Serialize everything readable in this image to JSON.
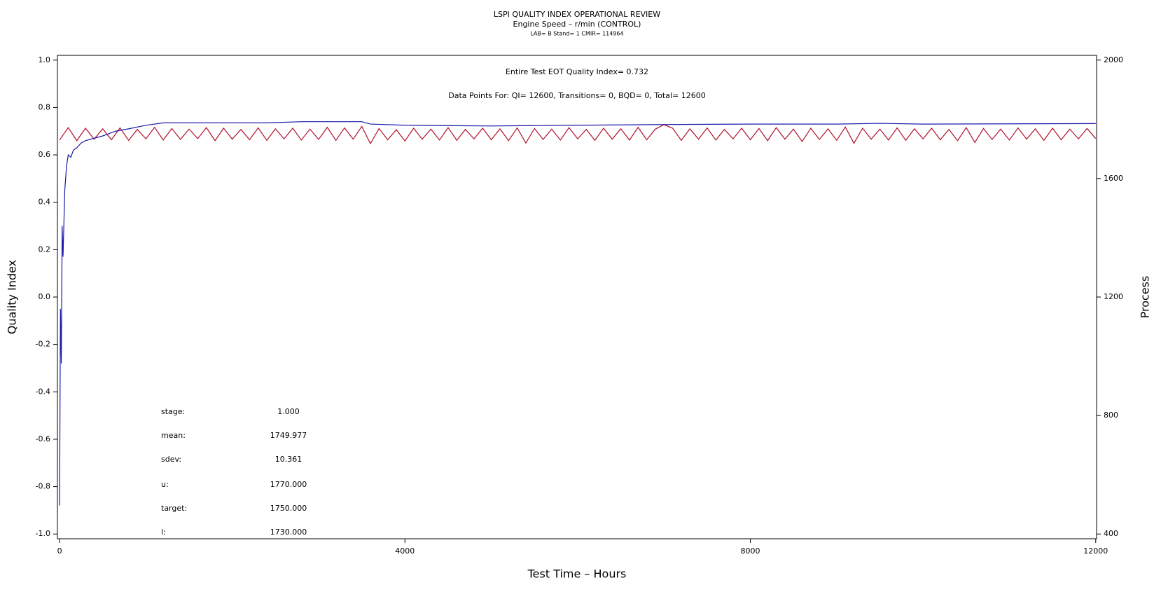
{
  "chart_data": {
    "type": "line",
    "title": "LSPI QUALITY INDEX OPERATIONAL REVIEW",
    "subtitle": "Engine Speed – r/min (CONTROL)",
    "subtitle2": "LAB= B Stand= 1 CMIR= 114964",
    "annotations": [
      "Entire Test EOT Quality Index=   0.732",
      "Data Points For: QI= 12600, Transitions=     0, BQD=     0, Total= 12600"
    ],
    "stats": [
      {
        "label": "stage:",
        "value": "1.000"
      },
      {
        "label": "mean:",
        "value": "1749.977"
      },
      {
        "label": "sdev:",
        "value": "10.361"
      },
      {
        "label": "u:",
        "value": "1770.000"
      },
      {
        "label": "target:",
        "value": "1750.000"
      },
      {
        "label": "l:",
        "value": "1730.000"
      }
    ],
    "x_label": "Test Time – Hours",
    "y_label": "Quality Index",
    "y2_label": "Process",
    "xlim": [
      -25,
      12010
    ],
    "xticks": [
      0,
      4000,
      8000,
      12000
    ],
    "ylim": [
      -1.02,
      1.02
    ],
    "yticks": [
      {
        "value": 1,
        "label": "1.0"
      },
      0.8,
      0.6,
      0.4,
      0.2,
      {
        "value": 0,
        "label": "0.0"
      },
      -0.2,
      -0.4,
      -0.6,
      -0.8,
      {
        "value": -1,
        "label": "-1.0"
      }
    ],
    "y2lim": [
      384,
      2016
    ],
    "y2ticks": [
      400,
      800,
      1200,
      1600,
      2000
    ],
    "series": [
      {
        "name": "Process",
        "color": "#b0102a",
        "axis": "y2",
        "x": [
          0,
          100,
          200,
          300,
          400,
          500,
          600,
          700,
          800,
          900,
          1000,
          1100,
          1200,
          1300,
          1400,
          1500,
          1600,
          1700,
          1800,
          1900,
          2000,
          2100,
          2200,
          2300,
          2400,
          2500,
          2600,
          2700,
          2800,
          2900,
          3000,
          3100,
          3200,
          3300,
          3400,
          3500,
          3600,
          3700,
          3800,
          3900,
          4000,
          4100,
          4200,
          4300,
          4400,
          4500,
          4600,
          4700,
          4800,
          4900,
          5000,
          5100,
          5200,
          5300,
          5400,
          5500,
          5600,
          5700,
          5800,
          5900,
          6000,
          6100,
          6200,
          6300,
          6400,
          6500,
          6600,
          6700,
          6800,
          6900,
          7000,
          7100,
          7200,
          7300,
          7400,
          7500,
          7600,
          7700,
          7800,
          7900,
          8000,
          8100,
          8200,
          8300,
          8400,
          8500,
          8600,
          8700,
          8800,
          8900,
          9000,
          9100,
          9200,
          9300,
          9400,
          9500,
          9600,
          9700,
          9800,
          9900,
          10000,
          10100,
          10200,
          10300,
          10400,
          10500,
          10600,
          10700,
          10800,
          10900,
          11000,
          11100,
          11200,
          11300,
          11400,
          11500,
          11600,
          11700,
          11800,
          11900,
          12000
        ],
        "values": [
          1730,
          1772,
          1728,
          1770,
          1733,
          1768,
          1731,
          1771,
          1729,
          1766,
          1734,
          1773,
          1730,
          1769,
          1732,
          1767,
          1735,
          1772,
          1728,
          1770,
          1733,
          1766,
          1731,
          1771,
          1729,
          1768,
          1734,
          1770,
          1730,
          1767,
          1732,
          1773,
          1729,
          1771,
          1733,
          1776,
          1718,
          1769,
          1731,
          1765,
          1727,
          1770,
          1733,
          1767,
          1730,
          1772,
          1729,
          1766,
          1734,
          1770,
          1731,
          1768,
          1728,
          1771,
          1720,
          1769,
          1732,
          1767,
          1730,
          1772,
          1734,
          1766,
          1729,
          1770,
          1733,
          1768,
          1730,
          1773,
          1731,
          1767,
          1782,
          1770,
          1729,
          1768,
          1733,
          1771,
          1730,
          1766,
          1734,
          1770,
          1731,
          1769,
          1728,
          1772,
          1733,
          1767,
          1725,
          1770,
          1732,
          1768,
          1729,
          1774,
          1719,
          1770,
          1733,
          1767,
          1730,
          1771,
          1729,
          1768,
          1734,
          1770,
          1731,
          1766,
          1728,
          1772,
          1722,
          1769,
          1732,
          1767,
          1730,
          1771,
          1733,
          1768,
          1729,
          1770,
          1731,
          1767,
          1734,
          1769,
          1735
        ]
      },
      {
        "name": "Quality Index",
        "color": "#1a1aa8",
        "axis": "y",
        "x": [
          0,
          10,
          20,
          30,
          40,
          60,
          80,
          100,
          130,
          160,
          200,
          250,
          300,
          400,
          500,
          650,
          800,
          1000,
          1200,
          1600,
          2000,
          2400,
          2800,
          3200,
          3500,
          3600,
          4000,
          5000,
          6000,
          7000,
          8000,
          9000,
          9500,
          10000,
          11000,
          12000
        ],
        "values": [
          -0.88,
          -0.05,
          -0.28,
          0.3,
          0.17,
          0.45,
          0.55,
          0.6,
          0.59,
          0.62,
          0.63,
          0.65,
          0.66,
          0.67,
          0.68,
          0.7,
          0.71,
          0.725,
          0.735,
          0.735,
          0.735,
          0.735,
          0.74,
          0.74,
          0.74,
          0.73,
          0.725,
          0.722,
          0.725,
          0.728,
          0.73,
          0.73,
          0.733,
          0.73,
          0.731,
          0.732
        ]
      }
    ]
  }
}
